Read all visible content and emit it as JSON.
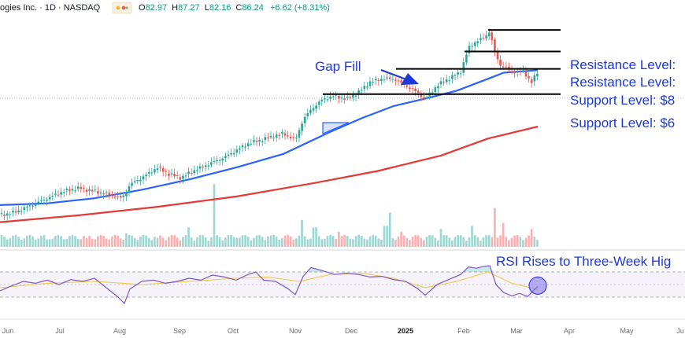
{
  "header": {
    "symbol": "ogies Inc. · 1D · NASDAQ",
    "ohlc": [
      {
        "label": "O",
        "value": "82.97"
      },
      {
        "label": "H",
        "value": "87.27"
      },
      {
        "label": "L",
        "value": "82.16"
      },
      {
        "label": "C",
        "value": "86.24"
      }
    ],
    "change": "+6.62 (+8.31%)"
  },
  "annotations": {
    "gap_fill": "Gap Fill",
    "resistance_1": "Resistance Level:",
    "resistance_2": "Resistance Level:",
    "support_1": "Support Level: $8",
    "support_2": "Support Level: $6",
    "rsi_note": "RSI Rises to Three-Week Hig"
  },
  "colors": {
    "up": "#26a69a",
    "down": "#ef5350",
    "ma_short": "#2962ff",
    "ma_long": "#e53935",
    "annotation": "#1c39d8",
    "rsi": "#7e57c2",
    "rsi_signal": "#f2c94c"
  },
  "chart_data": {
    "type": "candlestick",
    "x_ticks": [
      "Jun",
      "Jul",
      "Aug",
      "Sep",
      "Oct",
      "Nov",
      "Dec",
      "2025",
      "Feb",
      "Mar",
      "Apr",
      "May",
      "Ju"
    ],
    "ylim": [
      38,
      102
    ],
    "price_path": [
      [
        0,
        44
      ],
      [
        20,
        45
      ],
      [
        40,
        47
      ],
      [
        60,
        49
      ],
      [
        80,
        51
      ],
      [
        100,
        52
      ],
      [
        120,
        51
      ],
      [
        140,
        50
      ],
      [
        155,
        49
      ],
      [
        165,
        53
      ],
      [
        180,
        55
      ],
      [
        200,
        58
      ],
      [
        215,
        56
      ],
      [
        230,
        55
      ],
      [
        245,
        57
      ],
      [
        265,
        59
      ],
      [
        285,
        61
      ],
      [
        300,
        63
      ],
      [
        315,
        65
      ],
      [
        330,
        66
      ],
      [
        345,
        67
      ],
      [
        360,
        68
      ],
      [
        375,
        66
      ],
      [
        385,
        72
      ],
      [
        395,
        75
      ],
      [
        410,
        78
      ],
      [
        425,
        79
      ],
      [
        440,
        78
      ],
      [
        455,
        80
      ],
      [
        470,
        83
      ],
      [
        485,
        84
      ],
      [
        500,
        84
      ],
      [
        515,
        82
      ],
      [
        530,
        80
      ],
      [
        540,
        78
      ],
      [
        555,
        82
      ],
      [
        570,
        84
      ],
      [
        585,
        86
      ],
      [
        595,
        93
      ],
      [
        605,
        95
      ],
      [
        615,
        96
      ],
      [
        622,
        98
      ],
      [
        628,
        92
      ],
      [
        635,
        88
      ],
      [
        645,
        87
      ],
      [
        655,
        86
      ],
      [
        665,
        86
      ],
      [
        675,
        83
      ],
      [
        683,
        86
      ]
    ],
    "series": [
      {
        "type": "sma_short",
        "values": [
          [
            0,
            47
          ],
          [
            60,
            47.5
          ],
          [
            120,
            49
          ],
          [
            180,
            51.5
          ],
          [
            240,
            54.5
          ],
          [
            300,
            58
          ],
          [
            360,
            62
          ],
          [
            420,
            68.5
          ],
          [
            460,
            72.5
          ],
          [
            500,
            76
          ],
          [
            540,
            78.2
          ],
          [
            580,
            80.5
          ],
          [
            620,
            84
          ],
          [
            640,
            85.8
          ],
          [
            683,
            86.5
          ]
        ]
      },
      {
        "type": "sma_long",
        "values": [
          [
            0,
            42
          ],
          [
            100,
            44
          ],
          [
            200,
            46.5
          ],
          [
            300,
            49.5
          ],
          [
            400,
            53.5
          ],
          [
            480,
            57
          ],
          [
            560,
            61.5
          ],
          [
            620,
            66.5
          ],
          [
            683,
            70
          ]
        ]
      }
    ],
    "levels": [
      {
        "value": 98.3,
        "x_start": 620,
        "x_end": 712
      },
      {
        "value": 92.0,
        "x_start": 590,
        "x_end": 712
      },
      {
        "value": 86.9,
        "x_start": 503,
        "x_end": 712
      },
      {
        "value": 79.5,
        "x_start": 410,
        "x_end": 712
      }
    ],
    "volume": [
      [
        10,
        5
      ],
      [
        60,
        5
      ],
      [
        110,
        6
      ],
      [
        160,
        9
      ],
      [
        200,
        6
      ],
      [
        240,
        13
      ],
      [
        273,
        42
      ],
      [
        300,
        6
      ],
      [
        340,
        7
      ],
      [
        383,
        18
      ],
      [
        400,
        13
      ],
      [
        430,
        10
      ],
      [
        490,
        14
      ],
      [
        495,
        23
      ],
      [
        510,
        10
      ],
      [
        560,
        12
      ],
      [
        600,
        14
      ],
      [
        628,
        26
      ],
      [
        640,
        16
      ],
      [
        675,
        12
      ]
    ],
    "rsi": {
      "ylim": [
        0,
        100
      ],
      "levels": [
        70,
        50,
        30
      ],
      "values": [
        [
          0,
          40
        ],
        [
          15,
          48
        ],
        [
          30,
          55
        ],
        [
          45,
          52
        ],
        [
          60,
          57
        ],
        [
          75,
          50
        ],
        [
          90,
          58
        ],
        [
          105,
          55
        ],
        [
          120,
          60
        ],
        [
          135,
          45
        ],
        [
          150,
          30
        ],
        [
          158,
          20
        ],
        [
          165,
          43
        ],
        [
          180,
          55
        ],
        [
          195,
          57
        ],
        [
          210,
          52
        ],
        [
          225,
          55
        ],
        [
          240,
          60
        ],
        [
          255,
          57
        ],
        [
          270,
          65
        ],
        [
          285,
          62
        ],
        [
          300,
          57
        ],
        [
          315,
          66
        ],
        [
          325,
          70
        ],
        [
          335,
          57
        ],
        [
          350,
          55
        ],
        [
          365,
          44
        ],
        [
          375,
          34
        ],
        [
          385,
          63
        ],
        [
          395,
          77
        ],
        [
          410,
          72
        ],
        [
          425,
          66
        ],
        [
          440,
          68
        ],
        [
          455,
          66
        ],
        [
          470,
          62
        ],
        [
          485,
          63
        ],
        [
          500,
          58
        ],
        [
          515,
          55
        ],
        [
          530,
          44
        ],
        [
          540,
          33
        ],
        [
          555,
          50
        ],
        [
          570,
          58
        ],
        [
          585,
          66
        ],
        [
          595,
          78
        ],
        [
          605,
          76
        ],
        [
          615,
          79
        ],
        [
          622,
          80
        ],
        [
          630,
          50
        ],
        [
          640,
          37
        ],
        [
          650,
          32
        ],
        [
          660,
          36
        ],
        [
          670,
          31
        ],
        [
          683,
          47
        ]
      ],
      "signal": [
        [
          0,
          45
        ],
        [
          60,
          52
        ],
        [
          120,
          55
        ],
        [
          180,
          50
        ],
        [
          240,
          55
        ],
        [
          300,
          60
        ],
        [
          340,
          62
        ],
        [
          380,
          55
        ],
        [
          420,
          66
        ],
        [
          460,
          68
        ],
        [
          500,
          60
        ],
        [
          540,
          45
        ],
        [
          580,
          55
        ],
        [
          620,
          70
        ],
        [
          650,
          52
        ],
        [
          683,
          42
        ]
      ],
      "highlight_x": 683
    }
  }
}
